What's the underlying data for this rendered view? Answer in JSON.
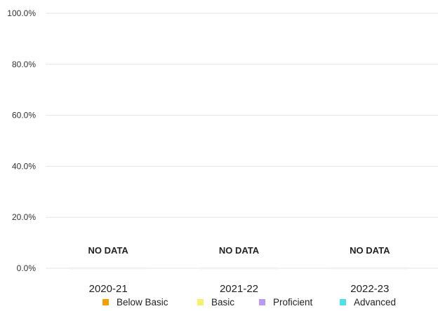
{
  "chart_data": {
    "type": "bar",
    "stacked": true,
    "categories": [
      "2020-21",
      "2021-22",
      "2022-23"
    ],
    "series": [
      {
        "name": "Below Basic",
        "color": "#f5a000",
        "values": [
          null,
          null,
          null
        ]
      },
      {
        "name": "Basic",
        "color": "#f5f06e",
        "values": [
          null,
          null,
          null
        ]
      },
      {
        "name": "Proficient",
        "color": "#b89af0",
        "values": [
          null,
          null,
          null
        ]
      },
      {
        "name": "Advanced",
        "color": "#4fe0e6",
        "values": [
          null,
          null,
          null
        ]
      }
    ],
    "no_data_label": "NO DATA",
    "ylim": [
      0,
      100
    ],
    "yticks": [
      0,
      20,
      40,
      60,
      80,
      100
    ],
    "ytick_labels": [
      "0.0%",
      "20.0%",
      "40.0%",
      "60.0%",
      "80.0%",
      "100.0%"
    ],
    "grid": true,
    "legend_position": "bottom"
  }
}
